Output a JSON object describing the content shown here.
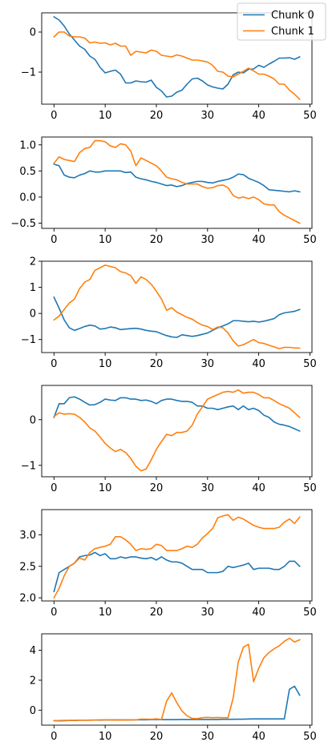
{
  "legend": {
    "placement": "top-right",
    "entries": [
      {
        "label": "Chunk 0",
        "color": "#1f77b4"
      },
      {
        "label": "Chunk 1",
        "color": "#ff7f0e"
      }
    ]
  },
  "chart_data": [
    {
      "type": "line",
      "grid": false,
      "xlim": [
        -2.4,
        50.4
      ],
      "ylim": [
        -1.8,
        0.48
      ],
      "xticks": [
        0,
        10,
        20,
        30,
        40,
        50
      ],
      "yticks": [
        -1,
        0
      ],
      "series": [
        {
          "name": "Chunk 0",
          "color": "#1f77b4",
          "values": [
            0.38,
            0.3,
            0.15,
            -0.05,
            -0.2,
            -0.35,
            -0.43,
            -0.6,
            -0.68,
            -0.88,
            -1.02,
            -0.98,
            -0.95,
            -1.05,
            -1.27,
            -1.27,
            -1.22,
            -1.24,
            -1.25,
            -1.2,
            -1.38,
            -1.47,
            -1.62,
            -1.6,
            -1.5,
            -1.45,
            -1.3,
            -1.17,
            -1.15,
            -1.22,
            -1.32,
            -1.37,
            -1.4,
            -1.42,
            -1.3,
            -1.07,
            -1.0,
            -1.02,
            -0.93,
            -0.92,
            -0.83,
            -0.88,
            -0.8,
            -0.73,
            -0.65,
            -0.65,
            -0.64,
            -0.68,
            -0.62
          ]
        },
        {
          "name": "Chunk 1",
          "color": "#ff7f0e",
          "values": [
            -0.12,
            0.0,
            0.0,
            -0.1,
            -0.12,
            -0.12,
            -0.15,
            -0.27,
            -0.25,
            -0.28,
            -0.27,
            -0.32,
            -0.28,
            -0.35,
            -0.35,
            -0.58,
            -0.48,
            -0.5,
            -0.52,
            -0.45,
            -0.48,
            -0.58,
            -0.6,
            -0.62,
            -0.57,
            -0.6,
            -0.65,
            -0.7,
            -0.7,
            -0.72,
            -0.75,
            -0.83,
            -0.98,
            -1.0,
            -1.1,
            -1.12,
            -1.05,
            -0.98,
            -0.9,
            -0.97,
            -1.05,
            -1.05,
            -1.1,
            -1.17,
            -1.3,
            -1.3,
            -1.45,
            -1.55,
            -1.68
          ]
        }
      ]
    },
    {
      "type": "line",
      "grid": false,
      "xlim": [
        -2.4,
        50.4
      ],
      "ylim": [
        -0.6,
        1.15
      ],
      "xticks": [
        0,
        10,
        20,
        30,
        40,
        50
      ],
      "yticks": [
        -0.5,
        0.0,
        0.5,
        1.0
      ],
      "series": [
        {
          "name": "Chunk 0",
          "color": "#1f77b4",
          "values": [
            0.63,
            0.6,
            0.42,
            0.38,
            0.37,
            0.42,
            0.45,
            0.5,
            0.48,
            0.48,
            0.5,
            0.5,
            0.5,
            0.5,
            0.47,
            0.48,
            0.38,
            0.35,
            0.33,
            0.3,
            0.28,
            0.25,
            0.22,
            0.23,
            0.2,
            0.22,
            0.26,
            0.28,
            0.3,
            0.3,
            0.28,
            0.27,
            0.3,
            0.32,
            0.34,
            0.38,
            0.44,
            0.43,
            0.36,
            0.32,
            0.28,
            0.22,
            0.14,
            0.13,
            0.12,
            0.11,
            0.1,
            0.12,
            0.1
          ]
        },
        {
          "name": "Chunk 1",
          "color": "#ff7f0e",
          "values": [
            0.65,
            0.77,
            0.72,
            0.7,
            0.68,
            0.85,
            0.93,
            0.95,
            1.08,
            1.08,
            1.06,
            0.98,
            0.95,
            1.02,
            1.0,
            0.88,
            0.6,
            0.75,
            0.7,
            0.65,
            0.6,
            0.5,
            0.38,
            0.35,
            0.33,
            0.28,
            0.25,
            0.25,
            0.25,
            0.2,
            0.17,
            0.18,
            0.22,
            0.23,
            0.18,
            0.03,
            -0.02,
            0.0,
            -0.03,
            0.0,
            -0.05,
            -0.13,
            -0.15,
            -0.15,
            -0.28,
            -0.35,
            -0.4,
            -0.45,
            -0.5
          ]
        }
      ]
    },
    {
      "type": "line",
      "grid": false,
      "xlim": [
        -2.4,
        50.4
      ],
      "ylim": [
        -1.5,
        2.0
      ],
      "xticks": [
        0,
        10,
        20,
        30,
        40,
        50
      ],
      "yticks": [
        -1,
        0,
        1,
        2
      ],
      "series": [
        {
          "name": "Chunk 0",
          "color": "#1f77b4",
          "values": [
            0.62,
            0.2,
            -0.25,
            -0.55,
            -0.65,
            -0.58,
            -0.5,
            -0.45,
            -0.48,
            -0.6,
            -0.58,
            -0.52,
            -0.55,
            -0.62,
            -0.6,
            -0.58,
            -0.57,
            -0.6,
            -0.65,
            -0.68,
            -0.7,
            -0.78,
            -0.85,
            -0.9,
            -0.92,
            -0.82,
            -0.85,
            -0.88,
            -0.85,
            -0.8,
            -0.75,
            -0.65,
            -0.55,
            -0.48,
            -0.4,
            -0.28,
            -0.28,
            -0.3,
            -0.32,
            -0.3,
            -0.33,
            -0.3,
            -0.25,
            -0.2,
            -0.05,
            0.02,
            0.05,
            0.08,
            0.15
          ]
        },
        {
          "name": "Chunk 1",
          "color": "#ff7f0e",
          "values": [
            -0.25,
            -0.1,
            0.15,
            0.4,
            0.55,
            0.95,
            1.2,
            1.3,
            1.65,
            1.75,
            1.85,
            1.8,
            1.75,
            1.6,
            1.55,
            1.45,
            1.15,
            1.4,
            1.3,
            1.12,
            0.85,
            0.55,
            0.12,
            0.22,
            0.05,
            -0.05,
            -0.15,
            -0.22,
            -0.35,
            -0.45,
            -0.5,
            -0.62,
            -0.52,
            -0.55,
            -0.75,
            -1.05,
            -1.25,
            -1.2,
            -1.1,
            -1.0,
            -1.12,
            -1.15,
            -1.22,
            -1.28,
            -1.35,
            -1.3,
            -1.3,
            -1.32,
            -1.33
          ]
        }
      ]
    },
    {
      "type": "line",
      "grid": false,
      "xlim": [
        -2.4,
        50.4
      ],
      "ylim": [
        -1.25,
        0.75
      ],
      "xticks": [
        0,
        10,
        20,
        30,
        40,
        50
      ],
      "yticks": [
        -1,
        0
      ],
      "series": [
        {
          "name": "Chunk 0",
          "color": "#1f77b4",
          "values": [
            0.05,
            0.35,
            0.35,
            0.48,
            0.5,
            0.45,
            0.38,
            0.32,
            0.33,
            0.38,
            0.45,
            0.43,
            0.42,
            0.48,
            0.48,
            0.45,
            0.45,
            0.42,
            0.43,
            0.4,
            0.35,
            0.42,
            0.45,
            0.45,
            0.42,
            0.4,
            0.4,
            0.38,
            0.3,
            0.3,
            0.25,
            0.25,
            0.22,
            0.25,
            0.28,
            0.3,
            0.22,
            0.3,
            0.22,
            0.25,
            0.2,
            0.1,
            0.05,
            -0.05,
            -0.1,
            -0.12,
            -0.15,
            -0.2,
            -0.25
          ]
        },
        {
          "name": "Chunk 1",
          "color": "#ff7f0e",
          "values": [
            0.07,
            0.15,
            0.12,
            0.13,
            0.12,
            0.05,
            -0.05,
            -0.18,
            -0.25,
            -0.38,
            -0.52,
            -0.62,
            -0.7,
            -0.65,
            -0.72,
            -0.85,
            -1.02,
            -1.12,
            -1.08,
            -0.88,
            -0.65,
            -0.48,
            -0.32,
            -0.35,
            -0.28,
            -0.28,
            -0.25,
            -0.12,
            0.12,
            0.28,
            0.45,
            0.5,
            0.55,
            0.6,
            0.62,
            0.6,
            0.65,
            0.58,
            0.6,
            0.6,
            0.55,
            0.48,
            0.48,
            0.42,
            0.35,
            0.3,
            0.25,
            0.15,
            0.05
          ]
        }
      ]
    },
    {
      "type": "line",
      "grid": false,
      "xlim": [
        -2.4,
        50.4
      ],
      "ylim": [
        1.95,
        3.4
      ],
      "xticks": [
        0,
        10,
        20,
        30,
        40,
        50
      ],
      "yticks": [
        2.0,
        2.5,
        3.0
      ],
      "series": [
        {
          "name": "Chunk 0",
          "color": "#1f77b4",
          "values": [
            2.1,
            2.4,
            2.45,
            2.5,
            2.55,
            2.65,
            2.67,
            2.68,
            2.72,
            2.67,
            2.7,
            2.62,
            2.62,
            2.65,
            2.63,
            2.65,
            2.65,
            2.63,
            2.62,
            2.64,
            2.6,
            2.65,
            2.6,
            2.57,
            2.57,
            2.55,
            2.5,
            2.45,
            2.45,
            2.45,
            2.4,
            2.4,
            2.4,
            2.42,
            2.5,
            2.48,
            2.5,
            2.52,
            2.55,
            2.45,
            2.47,
            2.47,
            2.47,
            2.45,
            2.45,
            2.5,
            2.58,
            2.58,
            2.5
          ]
        },
        {
          "name": "Chunk 1",
          "color": "#ff7f0e",
          "values": [
            2.0,
            2.15,
            2.35,
            2.5,
            2.55,
            2.63,
            2.6,
            2.72,
            2.78,
            2.8,
            2.82,
            2.85,
            2.97,
            2.97,
            2.92,
            2.85,
            2.75,
            2.78,
            2.77,
            2.78,
            2.85,
            2.83,
            2.75,
            2.75,
            2.75,
            2.78,
            2.82,
            2.8,
            2.85,
            2.95,
            3.02,
            3.1,
            3.27,
            3.3,
            3.32,
            3.23,
            3.28,
            3.25,
            3.2,
            3.15,
            3.12,
            3.1,
            3.1,
            3.1,
            3.12,
            3.2,
            3.25,
            3.18,
            3.28
          ]
        }
      ]
    },
    {
      "type": "line",
      "grid": false,
      "xlim": [
        -2.4,
        50.4
      ],
      "ylim": [
        -1.0,
        5.1
      ],
      "xticks": [
        0,
        10,
        20,
        30,
        40,
        50
      ],
      "yticks": [
        0,
        2,
        4
      ],
      "series": [
        {
          "name": "Chunk 0",
          "color": "#1f77b4",
          "values": [
            -0.7,
            -0.7,
            -0.69,
            -0.68,
            -0.68,
            -0.67,
            -0.67,
            -0.67,
            -0.66,
            -0.66,
            -0.65,
            -0.65,
            -0.65,
            -0.65,
            -0.65,
            -0.65,
            -0.64,
            -0.64,
            -0.64,
            -0.63,
            -0.63,
            -0.63,
            -0.63,
            -0.63,
            -0.63,
            -0.62,
            -0.62,
            -0.62,
            -0.62,
            -0.62,
            -0.62,
            -0.62,
            -0.62,
            -0.61,
            -0.61,
            -0.61,
            -0.6,
            -0.6,
            -0.59,
            -0.58,
            -0.58,
            -0.58,
            -0.58,
            -0.58,
            -0.58,
            -0.58,
            1.4,
            1.6,
            1.0
          ]
        },
        {
          "name": "Chunk 1",
          "color": "#ff7f0e",
          "values": [
            -0.7,
            -0.72,
            -0.71,
            -0.68,
            -0.68,
            -0.67,
            -0.67,
            -0.66,
            -0.66,
            -0.65,
            -0.64,
            -0.65,
            -0.66,
            -0.65,
            -0.66,
            -0.64,
            -0.65,
            -0.6,
            -0.6,
            -0.61,
            -0.58,
            -0.62,
            0.6,
            1.15,
            0.5,
            -0.05,
            -0.38,
            -0.55,
            -0.56,
            -0.5,
            -0.48,
            -0.5,
            -0.49,
            -0.5,
            -0.5,
            0.8,
            3.2,
            4.2,
            4.4,
            1.9,
            2.8,
            3.5,
            3.85,
            4.1,
            4.3,
            4.6,
            4.8,
            4.55,
            4.7
          ]
        }
      ]
    }
  ]
}
